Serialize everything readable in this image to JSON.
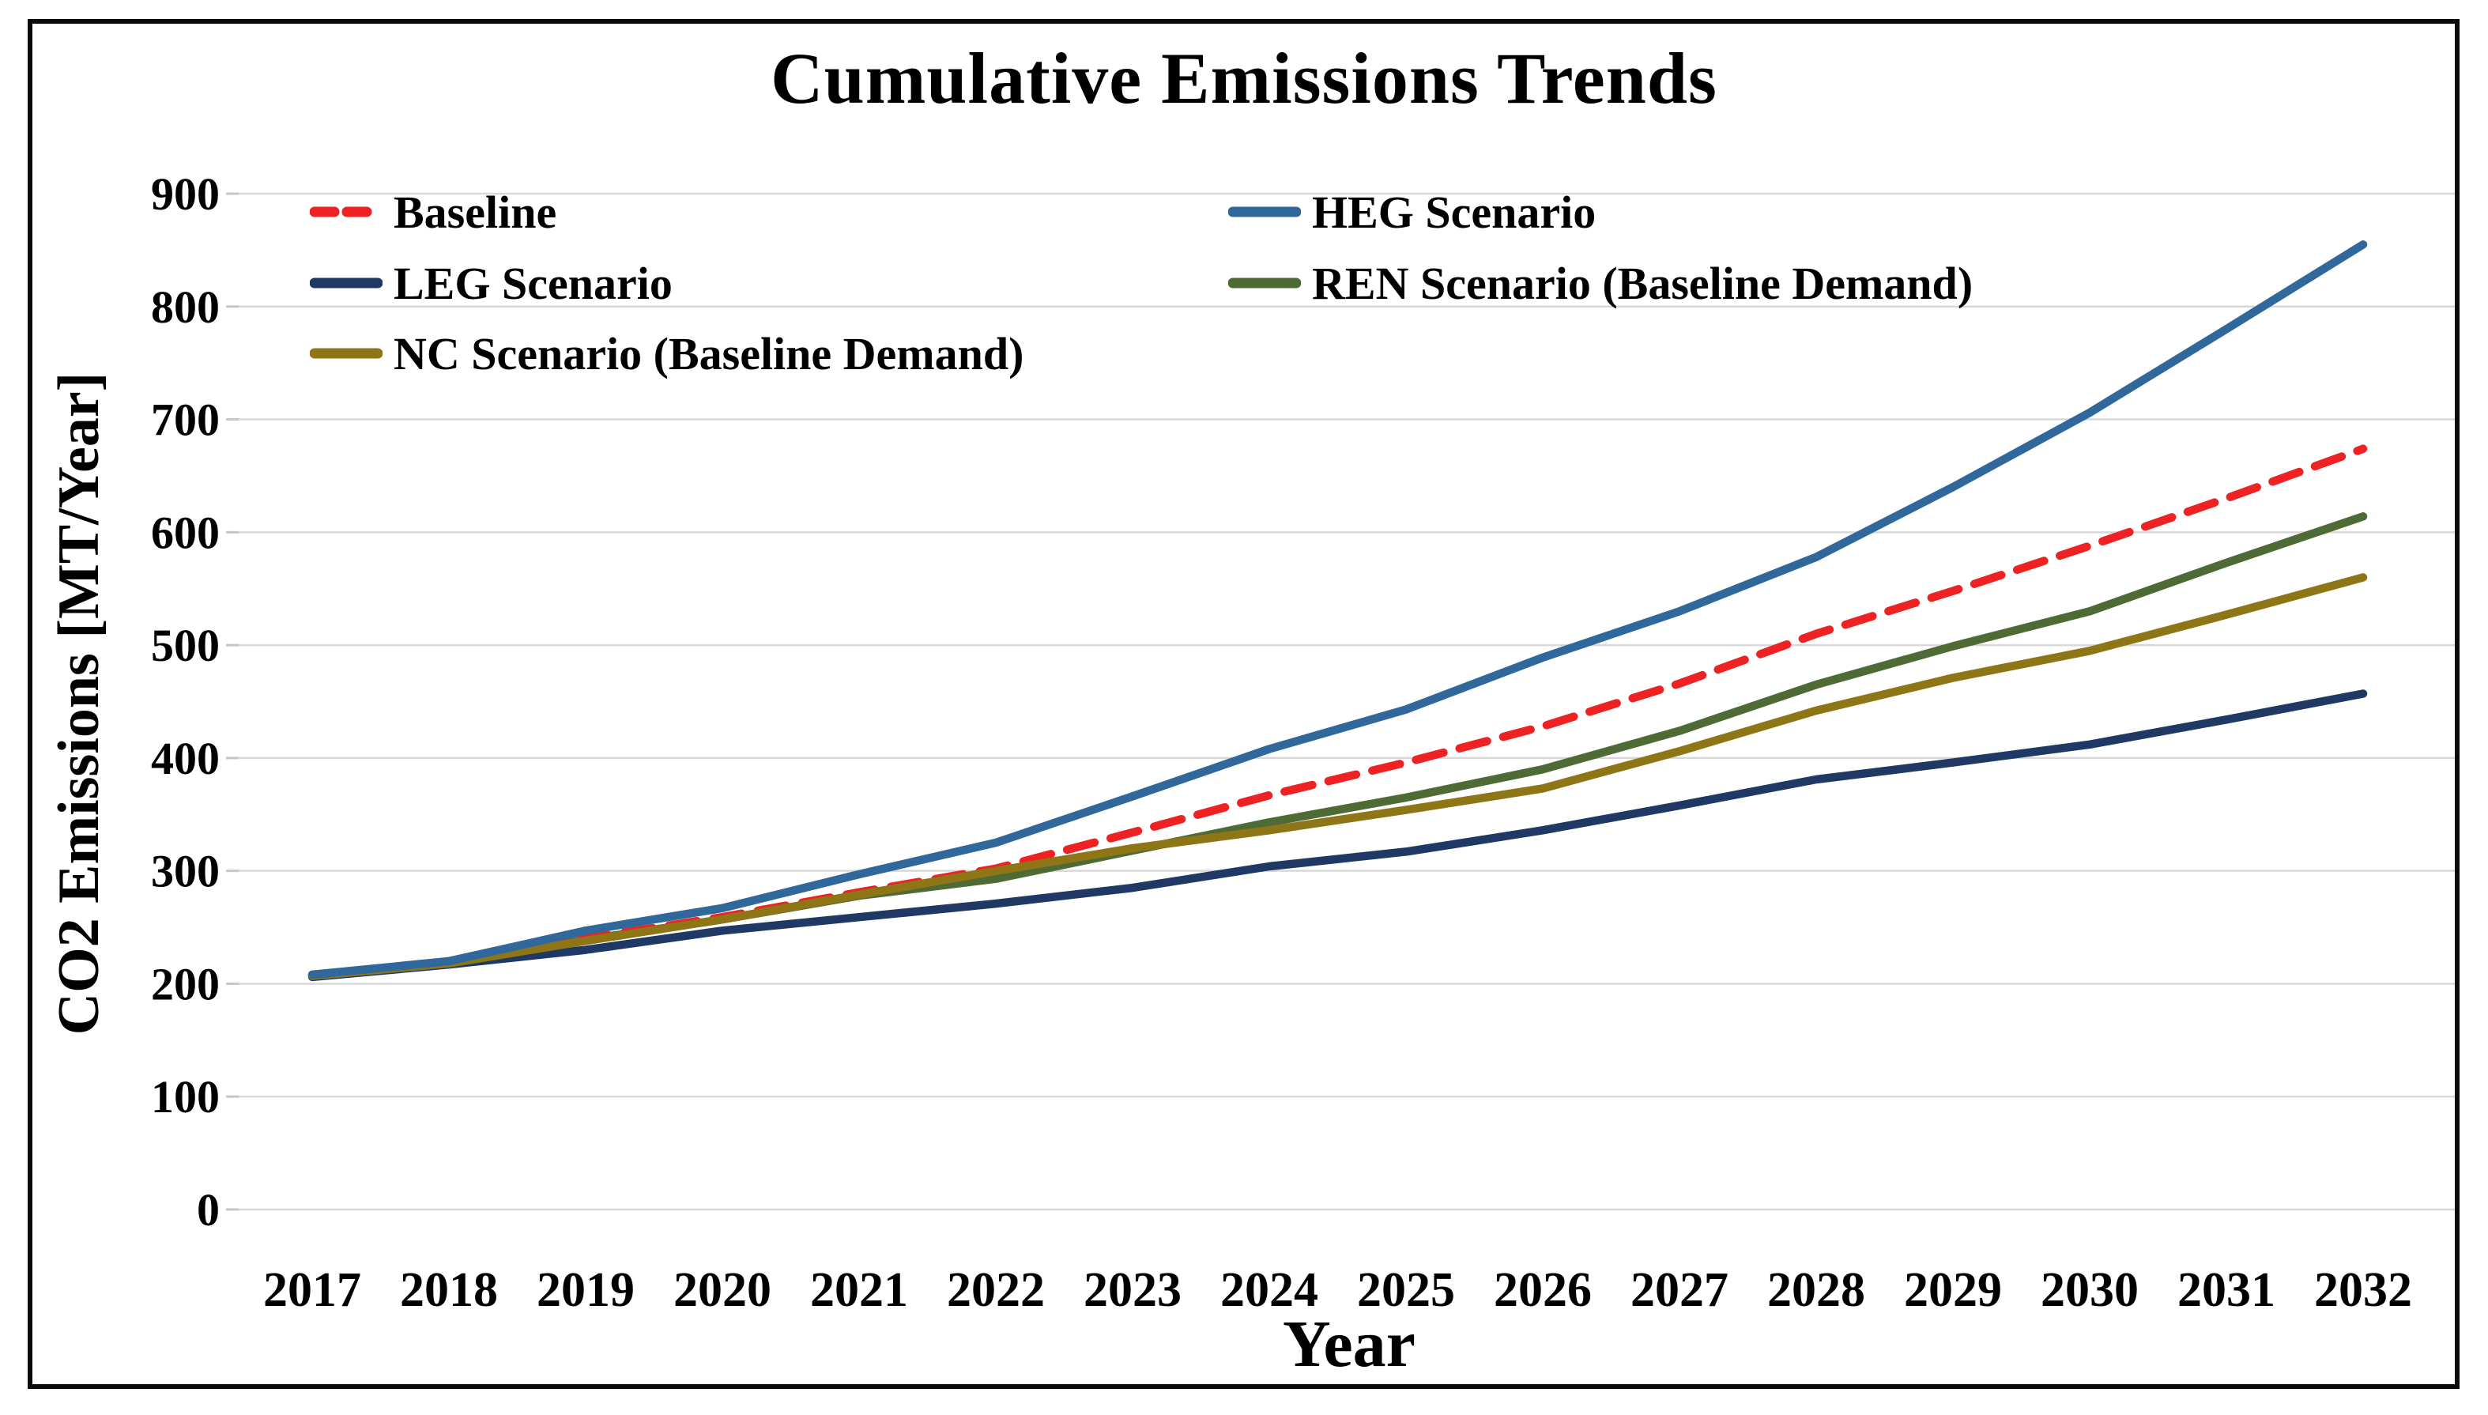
{
  "title": "Cumulative Emissions Trends",
  "x_axis": {
    "label": "Year"
  },
  "y_axis": {
    "label": "CO2 Emissions [MT/Year]"
  },
  "legend": {
    "baseline": {
      "label": "Baseline"
    },
    "heg": {
      "label": "HEG Scenario"
    },
    "leg": {
      "label": "LEG Scenario"
    },
    "ren": {
      "label": "REN Scenario (Baseline Demand)"
    },
    "nc": {
      "label": "NC Scenario (Baseline Demand)"
    }
  },
  "colors": {
    "baseline": "#EE2222",
    "heg": "#31689B",
    "leg": "#1F3864",
    "ren": "#4F6B35",
    "nc": "#8E7617",
    "gridline": "#D8D8D8",
    "tick_mark": "#C6C6C6",
    "frame": "#0B0B0B",
    "background": "#FFFFFF",
    "text": "#000000"
  },
  "chart_data": {
    "type": "line",
    "title": "Cumulative Emissions Trends",
    "xlabel": "Year",
    "ylabel": "CO2 Emissions [MT/Year]",
    "xlim": [
      2017,
      2032
    ],
    "ylim": [
      0,
      900
    ],
    "y_ticks": [
      0,
      100,
      200,
      300,
      400,
      500,
      600,
      700,
      800,
      900
    ],
    "x": [
      2017,
      2018,
      2019,
      2020,
      2021,
      2022,
      2023,
      2024,
      2025,
      2026,
      2027,
      2028,
      2029,
      2030,
      2031,
      2032
    ],
    "grid": true,
    "legend_position": "top-left, two columns, no box",
    "series": [
      {
        "name": "Baseline",
        "key": "baseline",
        "style": "dashed",
        "values": [
          208,
          219,
          240,
          259,
          281,
          302,
          334,
          367,
          396,
          428,
          466,
          510,
          548,
          588,
          630,
          674
        ]
      },
      {
        "name": "HEG Scenario",
        "key": "heg",
        "style": "solid",
        "values": [
          208,
          220,
          247,
          267,
          297,
          325,
          366,
          408,
          443,
          489,
          530,
          578,
          640,
          706,
          780,
          855
        ]
      },
      {
        "name": "LEG Scenario",
        "key": "leg",
        "style": "solid",
        "values": [
          206,
          217,
          230,
          247,
          259,
          271,
          285,
          304,
          317,
          336,
          358,
          381,
          396,
          412,
          434,
          457
        ]
      },
      {
        "name": "REN Scenario (Baseline Demand)",
        "key": "ren",
        "style": "solid",
        "values": [
          208,
          219,
          239,
          257,
          278,
          293,
          318,
          343,
          365,
          390,
          424,
          465,
          499,
          530,
          573,
          614
        ]
      },
      {
        "name": "NC Scenario (Baseline Demand)",
        "key": "nc",
        "style": "solid",
        "values": [
          207,
          218,
          238,
          257,
          279,
          300,
          320,
          336,
          354,
          373,
          406,
          442,
          471,
          495,
          527,
          560
        ]
      }
    ],
    "draw_order": [
      "leg",
      "ren",
      "baseline",
      "nc",
      "heg"
    ]
  }
}
